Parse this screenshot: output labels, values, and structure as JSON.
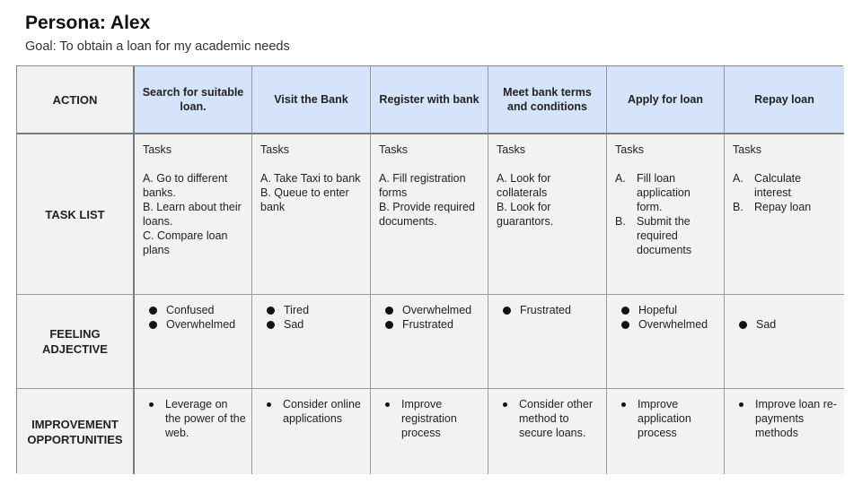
{
  "persona": {
    "title": "Persona: Alex",
    "goal": "Goal: To obtain a loan for my academic needs"
  },
  "rows": {
    "action": "ACTION",
    "task_list": "TASK LIST",
    "feeling_line1": "FEELING",
    "feeling_line2": "ADJECTIVE",
    "improvement_line1": "IMPROVEMENT",
    "improvement_line2": "OPPORTUNITIES"
  },
  "stages": [
    {
      "action": "Search for suitable loan.",
      "tasks_title": "Tasks",
      "tasks": [
        "A. Go to different banks.",
        "B. Learn about their loans.",
        "C. Compare loan plans"
      ],
      "feelings": [
        "Confused",
        "Overwhelmed"
      ],
      "improvement": "Leverage on the power of the web."
    },
    {
      "action": "Visit the Bank",
      "tasks_title": "Tasks",
      "tasks": [
        "A. Take Taxi to bank",
        "B. Queue to enter bank"
      ],
      "feelings": [
        "Tired",
        "Sad"
      ],
      "improvement": "Consider online applications"
    },
    {
      "action": "Register with bank",
      "tasks_title": "Tasks",
      "tasks": [
        "A. Fill registration forms",
        "B. Provide required documents."
      ],
      "feelings": [
        "Overwhelmed",
        "Frustrated"
      ],
      "improvement": "Improve registration process"
    },
    {
      "action": "Meet bank terms and conditions",
      "tasks_title": "Tasks",
      "tasks": [
        "A. Look for collaterals",
        "B. Look for guarantors."
      ],
      "feelings": [
        "Frustrated"
      ],
      "improvement": "Consider other method to secure loans."
    },
    {
      "action": "Apply  for loan",
      "tasks_title": "Tasks",
      "tasks_list": [
        {
          "marker": "A.",
          "text": "Fill loan application form."
        },
        {
          "marker": "B.",
          "text": "Submit the required documents"
        }
      ],
      "feelings": [
        "Hopeful",
        "Overwhelmed"
      ],
      "improvement": "Improve application process"
    },
    {
      "action": "Repay loan",
      "tasks_title": "Tasks",
      "tasks_list": [
        {
          "marker": "A.",
          "text": "Calculate interest"
        },
        {
          "marker": "B.",
          "text": "Repay loan"
        }
      ],
      "feelings": [
        "Sad"
      ],
      "improvement": "Improve loan re-payments methods"
    }
  ],
  "colors": {
    "header_fill": "#d6e4fb",
    "cell_fill": "#f2f2f2",
    "border": "#8a8a8a"
  }
}
